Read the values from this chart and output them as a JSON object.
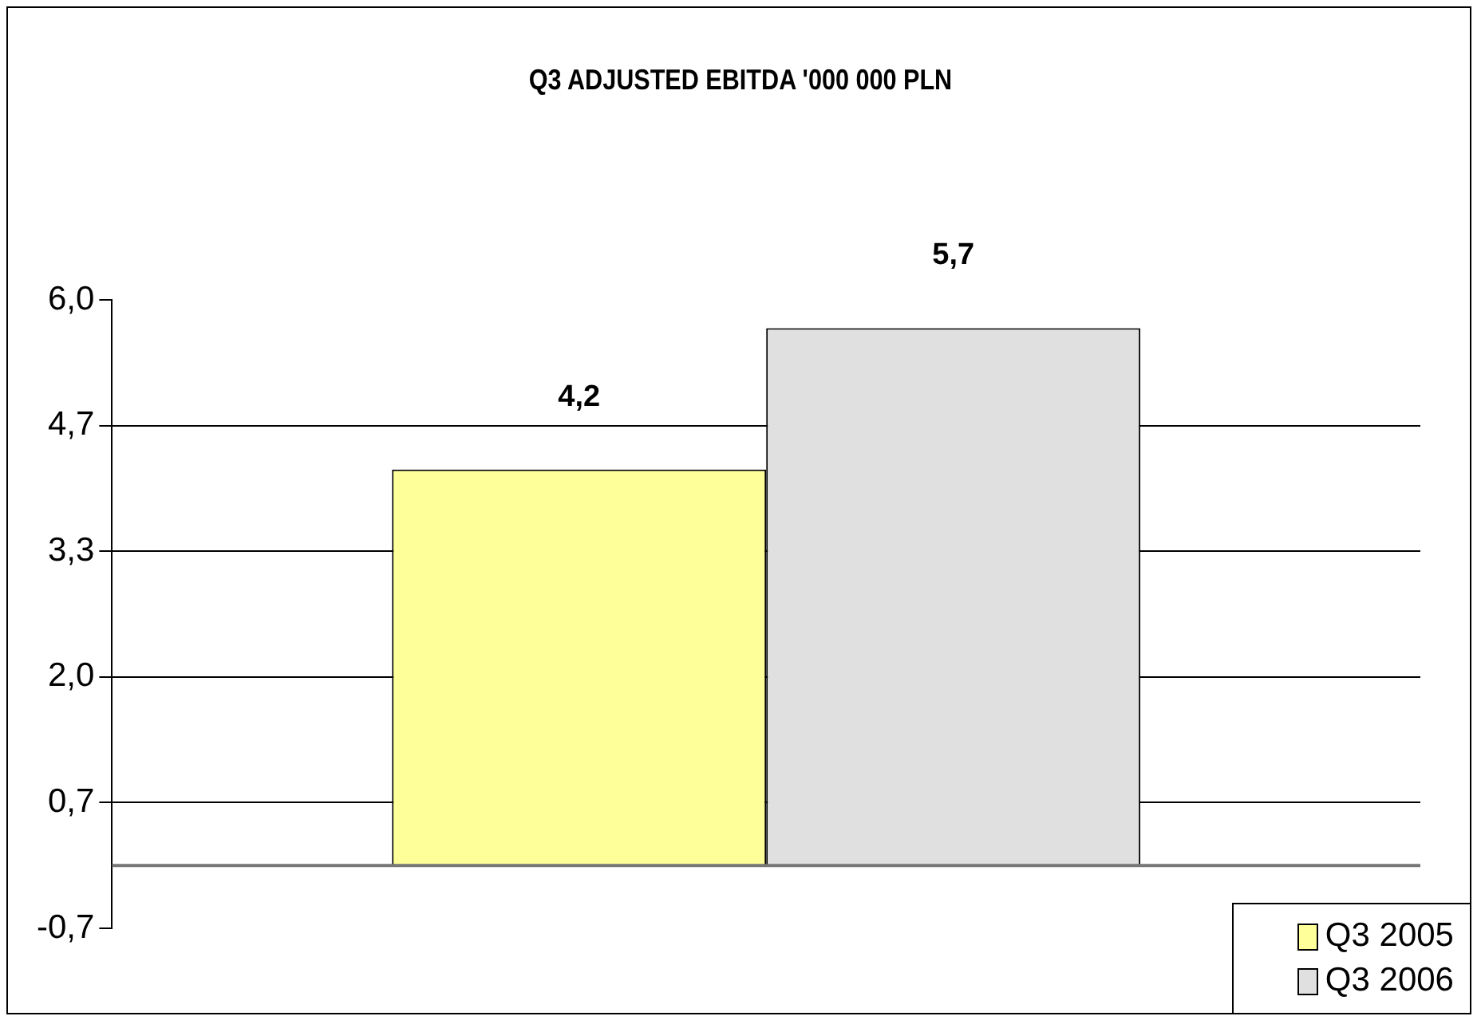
{
  "chart_data": {
    "type": "bar",
    "title": "Q3 ADJUSTED EBITDA '000 000 PLN",
    "categories": [
      null
    ],
    "series": [
      {
        "name": "Q3 2005",
        "color": "#ffff99",
        "values": [
          4.2
        ],
        "value_labels": [
          "4,2"
        ]
      },
      {
        "name": "Q3 2006",
        "color": "#e0e0e0",
        "values": [
          5.7
        ],
        "value_labels": [
          "5,7"
        ]
      }
    ],
    "ylim": [
      -0.6667,
      6.0
    ],
    "yticks": [
      {
        "value": -0.6667,
        "label": "-0,7"
      },
      {
        "value": 0.6667,
        "label": "0,7"
      },
      {
        "value": 2.0,
        "label": "2,0"
      },
      {
        "value": 3.3333,
        "label": "3,3"
      },
      {
        "value": 4.6667,
        "label": "4,7"
      },
      {
        "value": 6.0,
        "label": "6,0"
      }
    ],
    "grid": "y",
    "legend": "bottom right"
  }
}
